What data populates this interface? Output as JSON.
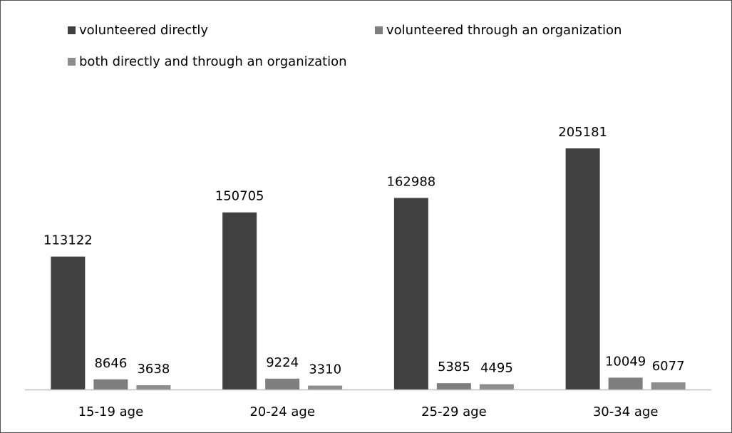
{
  "chart_data": {
    "type": "bar",
    "categories": [
      "15-19 age",
      "20-24 age",
      "25-29 age",
      "30-34 age"
    ],
    "series": [
      {
        "name": "volunteered directly",
        "color": "#404040",
        "values": [
          113122,
          150705,
          162988,
          205181
        ]
      },
      {
        "name": "volunteered through an organization",
        "color": "#7f7f7f",
        "values": [
          8646,
          9224,
          5385,
          10049
        ]
      },
      {
        "name": "both directly and through an organization",
        "color": "#8e8e8e",
        "values": [
          3638,
          3310,
          4495,
          6077
        ]
      }
    ],
    "legend": "top"
  }
}
